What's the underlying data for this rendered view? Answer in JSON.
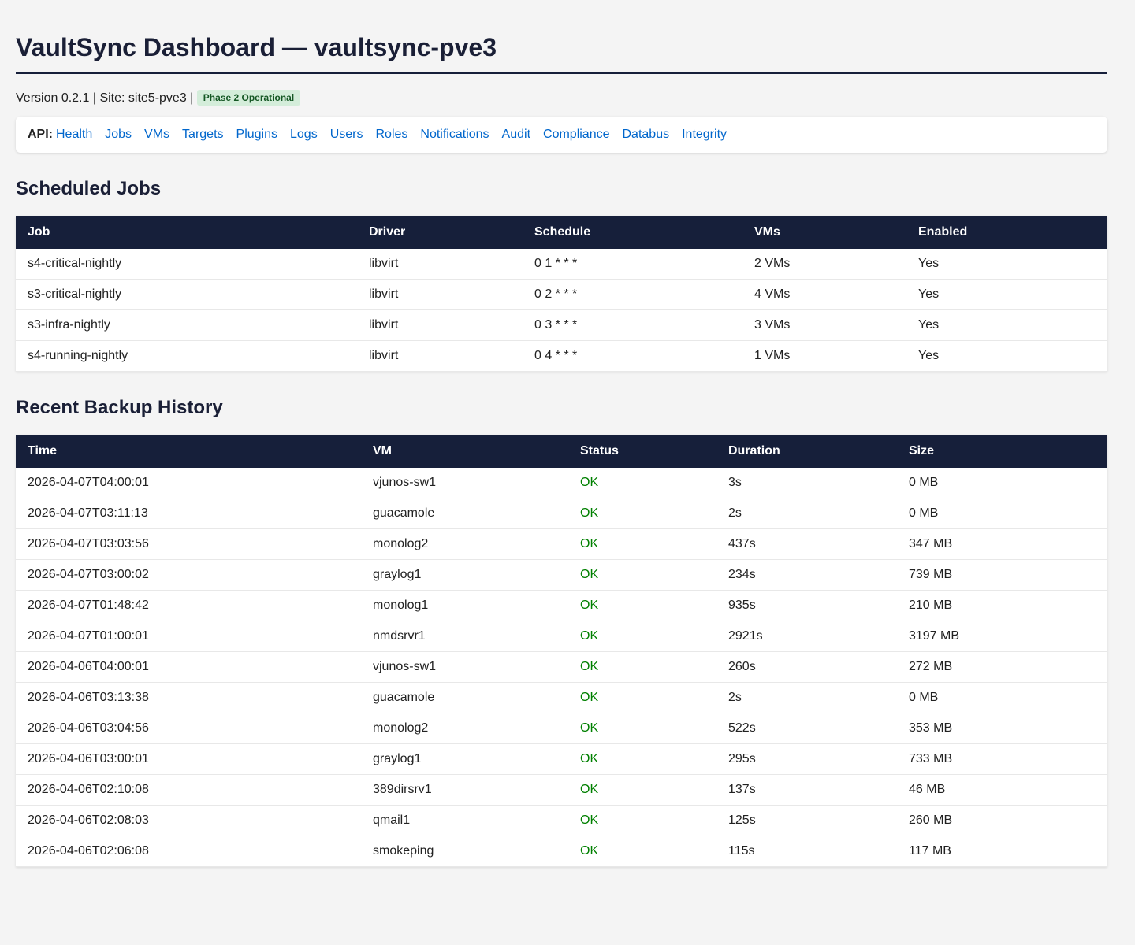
{
  "header": {
    "title": "VaultSync Dashboard — vaultsync-pve3",
    "info": "Version 0.2.1 | Site: site5-pve3 |",
    "badge": "Phase 2 Operational"
  },
  "nav": {
    "label": "API:",
    "links": [
      "Health",
      "Jobs",
      "VMs",
      "Targets",
      "Plugins",
      "Logs",
      "Users",
      "Roles",
      "Notifications",
      "Audit",
      "Compliance",
      "Databus",
      "Integrity"
    ]
  },
  "jobs": {
    "title": "Scheduled Jobs",
    "columns": [
      "Job",
      "Driver",
      "Schedule",
      "VMs",
      "Enabled"
    ],
    "rows": [
      [
        "s4-critical-nightly",
        "libvirt",
        "0 1 * * *",
        "2 VMs",
        "Yes"
      ],
      [
        "s3-critical-nightly",
        "libvirt",
        "0 2 * * *",
        "4 VMs",
        "Yes"
      ],
      [
        "s3-infra-nightly",
        "libvirt",
        "0 3 * * *",
        "3 VMs",
        "Yes"
      ],
      [
        "s4-running-nightly",
        "libvirt",
        "0 4 * * *",
        "1 VMs",
        "Yes"
      ]
    ]
  },
  "history": {
    "title": "Recent Backup History",
    "columns": [
      "Time",
      "VM",
      "Status",
      "Duration",
      "Size"
    ],
    "rows": [
      [
        "2026-04-07T04:00:01",
        "vjunos-sw1",
        "OK",
        "3s",
        "0 MB"
      ],
      [
        "2026-04-07T03:11:13",
        "guacamole",
        "OK",
        "2s",
        "0 MB"
      ],
      [
        "2026-04-07T03:03:56",
        "monolog2",
        "OK",
        "437s",
        "347 MB"
      ],
      [
        "2026-04-07T03:00:02",
        "graylog1",
        "OK",
        "234s",
        "739 MB"
      ],
      [
        "2026-04-07T01:48:42",
        "monolog1",
        "OK",
        "935s",
        "210 MB"
      ],
      [
        "2026-04-07T01:00:01",
        "nmdsrvr1",
        "OK",
        "2921s",
        "3197 MB"
      ],
      [
        "2026-04-06T04:00:01",
        "vjunos-sw1",
        "OK",
        "260s",
        "272 MB"
      ],
      [
        "2026-04-06T03:13:38",
        "guacamole",
        "OK",
        "2s",
        "0 MB"
      ],
      [
        "2026-04-06T03:04:56",
        "monolog2",
        "OK",
        "522s",
        "353 MB"
      ],
      [
        "2026-04-06T03:00:01",
        "graylog1",
        "OK",
        "295s",
        "733 MB"
      ],
      [
        "2026-04-06T02:10:08",
        "389dirsrv1",
        "OK",
        "137s",
        "46 MB"
      ],
      [
        "2026-04-06T02:08:03",
        "qmail1",
        "OK",
        "125s",
        "260 MB"
      ],
      [
        "2026-04-06T02:06:08",
        "smokeping",
        "OK",
        "115s",
        "117 MB"
      ]
    ]
  }
}
